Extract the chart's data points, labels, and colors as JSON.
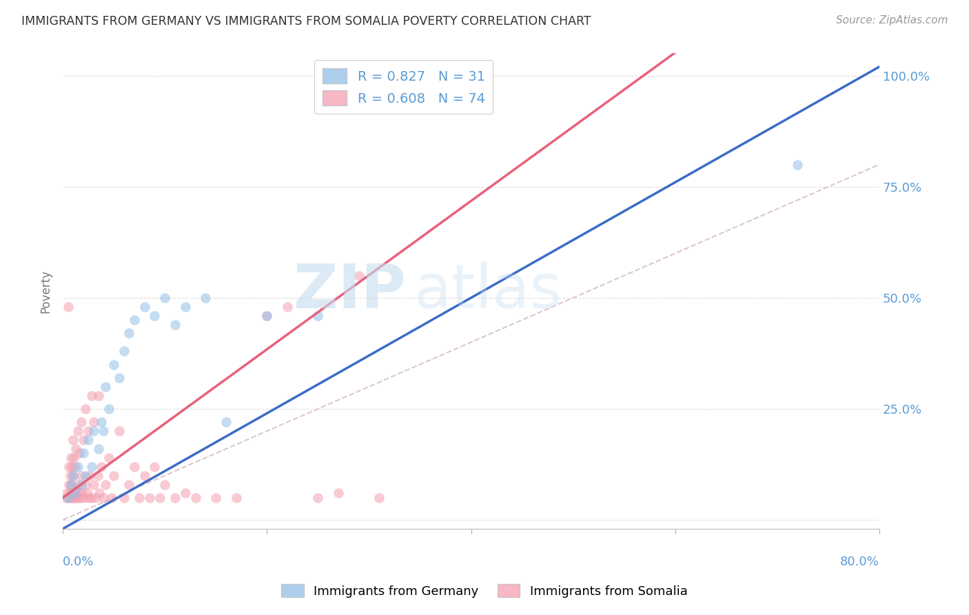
{
  "title": "IMMIGRANTS FROM GERMANY VS IMMIGRANTS FROM SOMALIA POVERTY CORRELATION CHART",
  "source": "Source: ZipAtlas.com",
  "ylabel": "Poverty",
  "xlim": [
    0,
    0.8
  ],
  "ylim": [
    -0.02,
    1.05
  ],
  "legend_r_germany": "R = 0.827",
  "legend_n_germany": "N = 31",
  "legend_r_somalia": "R = 0.608",
  "legend_n_somalia": "N = 74",
  "color_germany": "#92C0E8",
  "color_somalia": "#F4A0B0",
  "color_germany_line": "#3B6CC7",
  "color_somalia_line": "#E8607A",
  "color_diagonal": "#D8C0C8",
  "watermark_zip": "ZIP",
  "watermark_atlas": "atlas",
  "germany_scatter_x": [
    0.005,
    0.008,
    0.01,
    0.012,
    0.015,
    0.018,
    0.02,
    0.022,
    0.025,
    0.028,
    0.03,
    0.035,
    0.038,
    0.04,
    0.042,
    0.045,
    0.05,
    0.055,
    0.06,
    0.065,
    0.07,
    0.08,
    0.09,
    0.1,
    0.11,
    0.12,
    0.14,
    0.16,
    0.2,
    0.25,
    0.72
  ],
  "germany_scatter_y": [
    0.05,
    0.08,
    0.1,
    0.06,
    0.12,
    0.08,
    0.15,
    0.1,
    0.18,
    0.12,
    0.2,
    0.16,
    0.22,
    0.2,
    0.3,
    0.25,
    0.35,
    0.32,
    0.38,
    0.42,
    0.45,
    0.48,
    0.46,
    0.5,
    0.44,
    0.48,
    0.5,
    0.22,
    0.46,
    0.46,
    0.8
  ],
  "somalia_scatter_x": [
    0.003,
    0.004,
    0.005,
    0.006,
    0.006,
    0.007,
    0.007,
    0.008,
    0.008,
    0.008,
    0.009,
    0.009,
    0.01,
    0.01,
    0.01,
    0.011,
    0.011,
    0.012,
    0.012,
    0.013,
    0.013,
    0.014,
    0.015,
    0.015,
    0.016,
    0.016,
    0.017,
    0.018,
    0.018,
    0.019,
    0.02,
    0.02,
    0.022,
    0.022,
    0.024,
    0.025,
    0.025,
    0.026,
    0.028,
    0.028,
    0.03,
    0.03,
    0.032,
    0.034,
    0.035,
    0.036,
    0.038,
    0.04,
    0.042,
    0.045,
    0.048,
    0.05,
    0.055,
    0.06,
    0.065,
    0.07,
    0.075,
    0.08,
    0.085,
    0.09,
    0.095,
    0.1,
    0.11,
    0.12,
    0.13,
    0.15,
    0.17,
    0.2,
    0.22,
    0.25,
    0.27,
    0.29,
    0.005,
    0.31
  ],
  "somalia_scatter_y": [
    0.05,
    0.06,
    0.05,
    0.08,
    0.12,
    0.06,
    0.1,
    0.05,
    0.08,
    0.14,
    0.06,
    0.12,
    0.05,
    0.1,
    0.18,
    0.06,
    0.14,
    0.05,
    0.12,
    0.07,
    0.16,
    0.05,
    0.08,
    0.2,
    0.06,
    0.15,
    0.05,
    0.1,
    0.22,
    0.06,
    0.05,
    0.18,
    0.08,
    0.25,
    0.06,
    0.05,
    0.2,
    0.1,
    0.05,
    0.28,
    0.08,
    0.22,
    0.05,
    0.1,
    0.28,
    0.06,
    0.12,
    0.05,
    0.08,
    0.14,
    0.05,
    0.1,
    0.2,
    0.05,
    0.08,
    0.12,
    0.05,
    0.1,
    0.05,
    0.12,
    0.05,
    0.08,
    0.05,
    0.06,
    0.05,
    0.05,
    0.05,
    0.46,
    0.48,
    0.05,
    0.06,
    0.55,
    0.48,
    0.05
  ],
  "ytick_vals": [
    0.0,
    0.25,
    0.5,
    0.75,
    1.0
  ],
  "ytick_labels": [
    "",
    "25.0%",
    "50.0%",
    "75.0%",
    "100.0%"
  ],
  "xtick_positions": [
    0.0,
    0.2,
    0.4,
    0.6,
    0.8
  ]
}
